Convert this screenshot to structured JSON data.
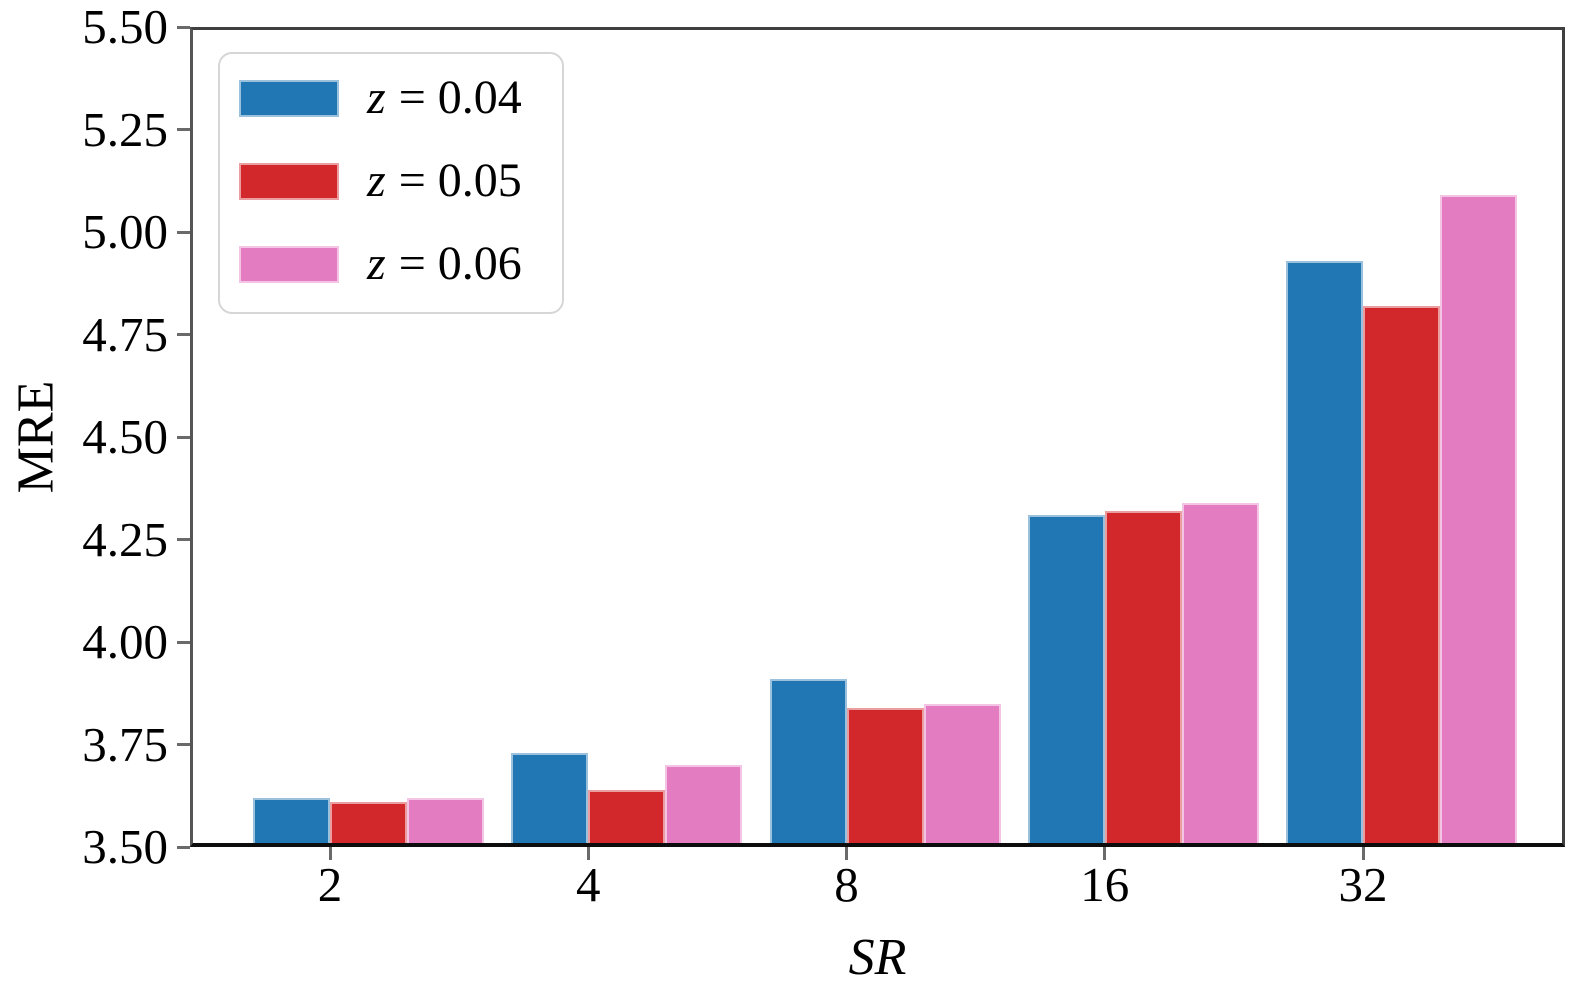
{
  "figure": {
    "background": "#ffffff"
  },
  "chart_data": {
    "type": "bar",
    "title": "",
    "xlabel": "SR",
    "ylabel": "MRE",
    "categories": [
      "2",
      "4",
      "8",
      "16",
      "32"
    ],
    "series": [
      {
        "name": "z = 0.04",
        "var": "z",
        "rest": "= 0.04",
        "color": "#2176b4",
        "values": [
          3.61,
          3.72,
          3.9,
          4.3,
          4.92
        ]
      },
      {
        "name": "z = 0.05",
        "var": "z",
        "rest": "= 0.05",
        "color": "#d2282c",
        "values": [
          3.6,
          3.63,
          3.83,
          4.31,
          4.81
        ]
      },
      {
        "name": "z = 0.06",
        "var": "z",
        "rest": "= 0.06",
        "color": "#e47cc2",
        "values": [
          3.61,
          3.69,
          3.84,
          4.33,
          5.08
        ]
      }
    ],
    "ylim": [
      3.5,
      5.5
    ],
    "ytick_step": 0.25,
    "yticks": [
      "3.50",
      "3.75",
      "4.00",
      "4.25",
      "4.50",
      "4.75",
      "5.00",
      "5.25",
      "5.50"
    ],
    "legend_position": "upper left",
    "grid": false
  }
}
